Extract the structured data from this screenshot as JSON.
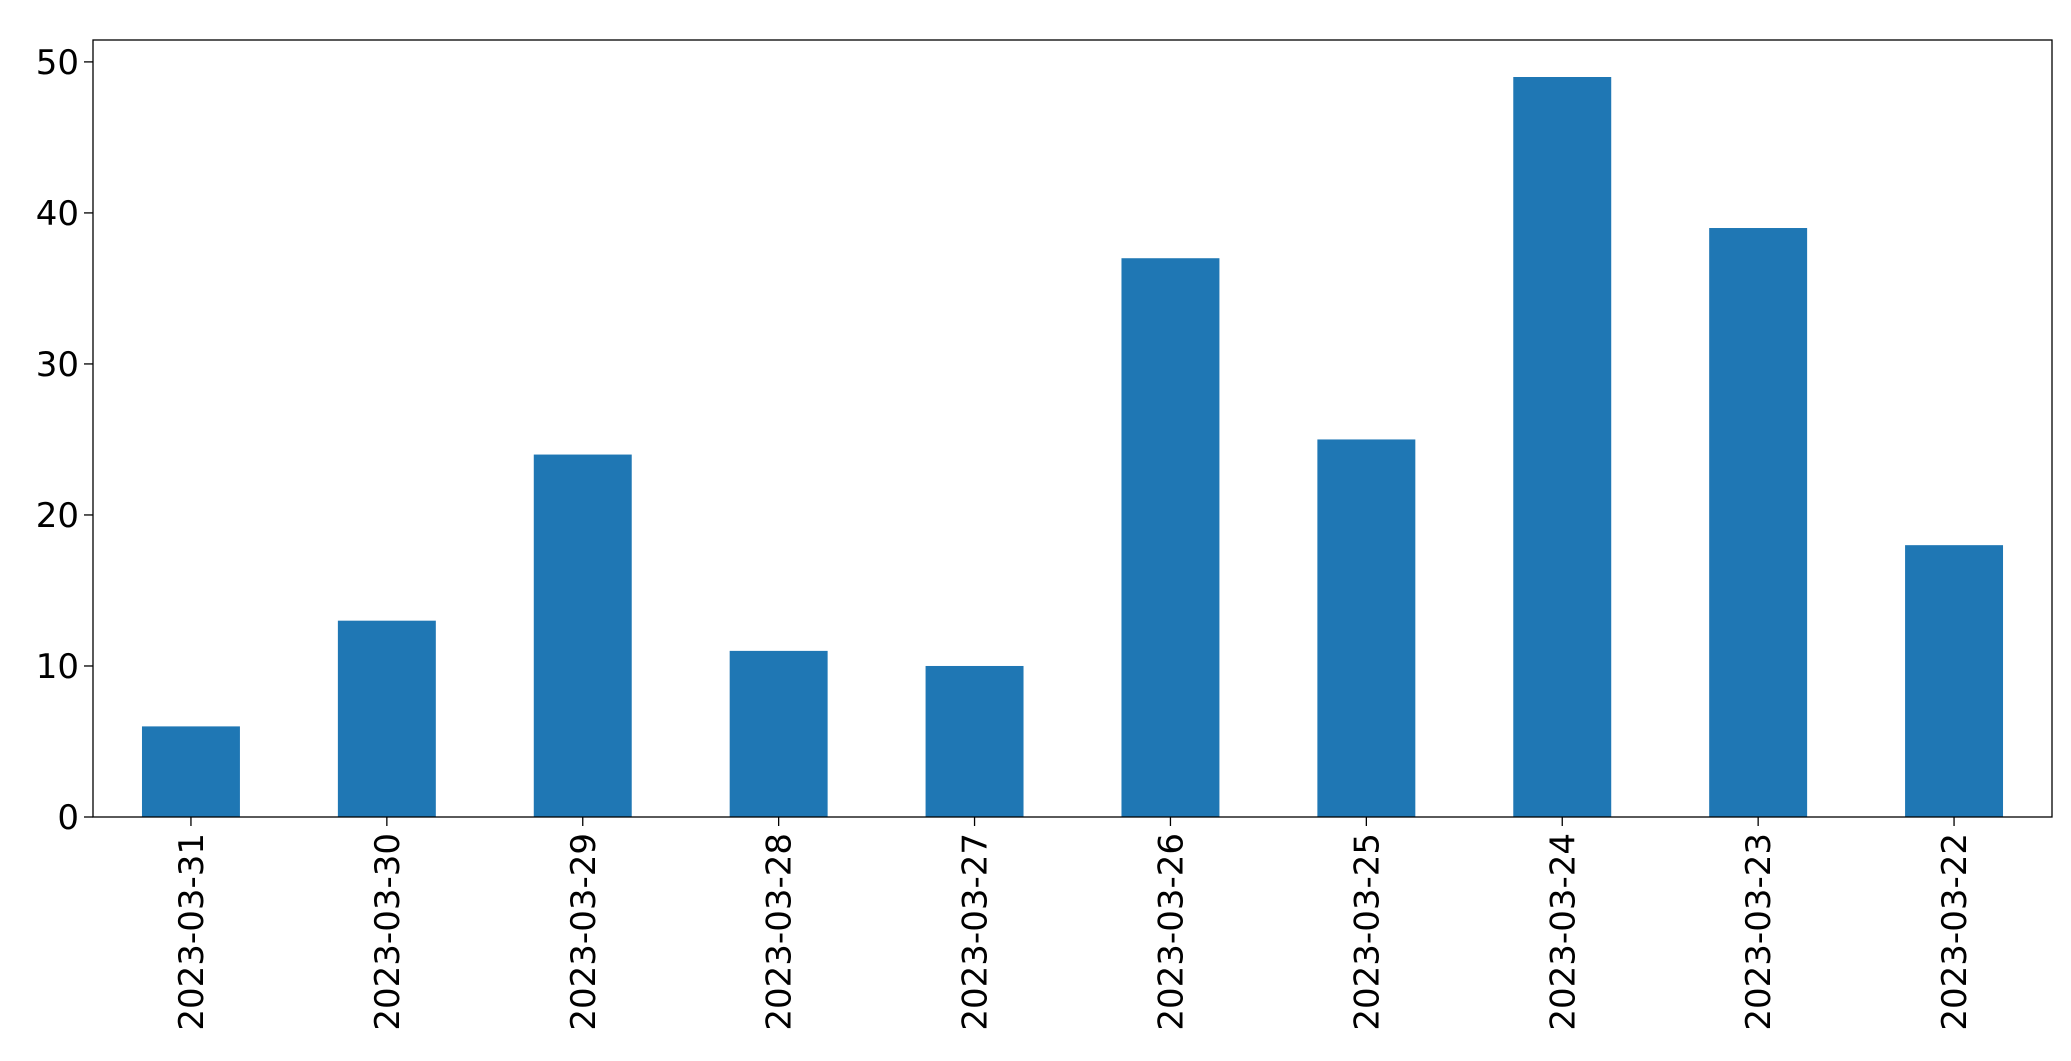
{
  "chart_data": {
    "type": "bar",
    "categories": [
      "2023-03-31",
      "2023-03-30",
      "2023-03-29",
      "2023-03-28",
      "2023-03-27",
      "2023-03-26",
      "2023-03-25",
      "2023-03-24",
      "2023-03-23",
      "2023-03-22"
    ],
    "values": [
      6,
      13,
      24,
      11,
      10,
      37,
      25,
      49,
      39,
      18
    ],
    "color": "#1f77b4",
    "ylim": [
      0,
      51.45
    ],
    "yticks": [
      0,
      10,
      20,
      30,
      40,
      50
    ],
    "grid": false
  }
}
